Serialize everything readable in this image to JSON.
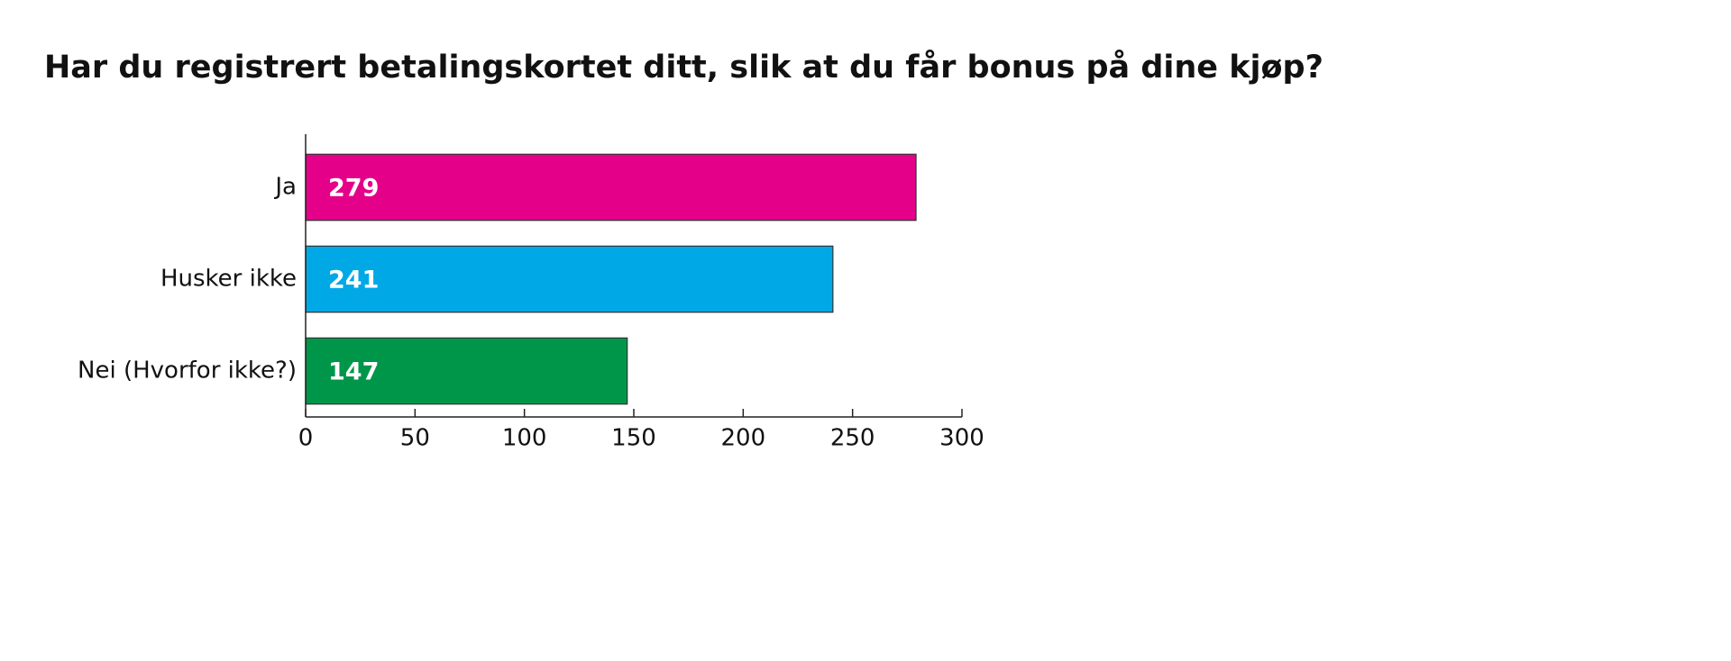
{
  "chart_data": {
    "type": "bar",
    "orientation": "horizontal",
    "title": "Har du registrert betalingskortet ditt, slik at du får bonus på dine kjøp?",
    "categories": [
      "Ja",
      "Husker ikke",
      "Nei (Hvorfor ikke?)"
    ],
    "values": [
      279,
      241,
      147
    ],
    "colors": [
      "#e5008a",
      "#00a8e6",
      "#00964a"
    ],
    "xlim": [
      0,
      300
    ],
    "xticks": [
      0,
      50,
      100,
      150,
      200,
      250,
      300
    ]
  }
}
